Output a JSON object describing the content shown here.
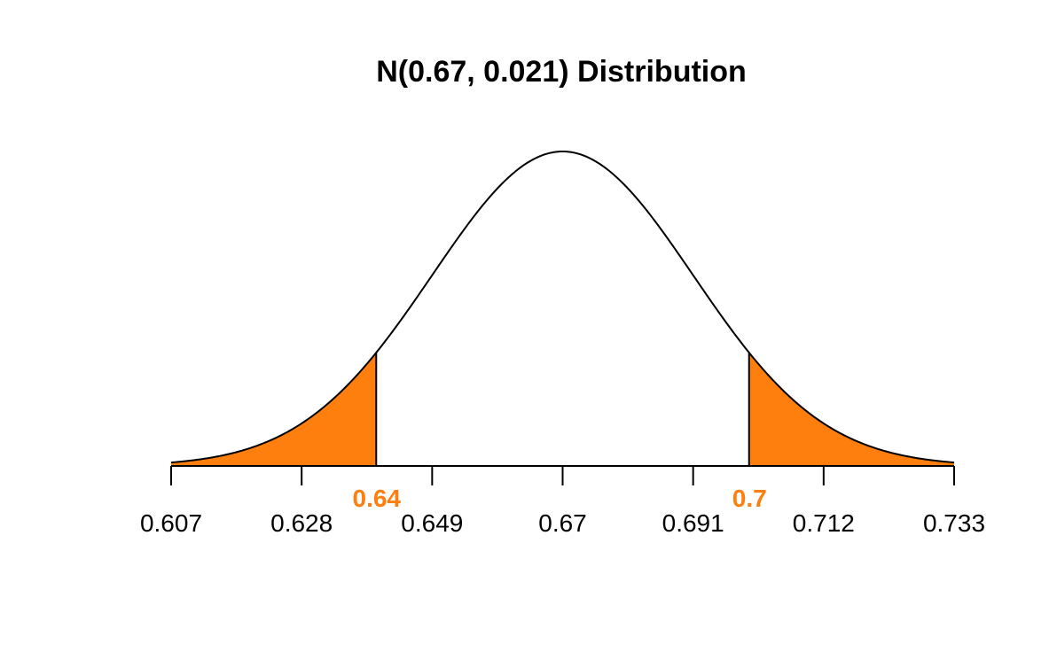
{
  "chart_data": {
    "type": "area",
    "title": "N(0.67, 0.021) Distribution",
    "xlabel": "",
    "ylabel": "",
    "distribution": {
      "family": "normal",
      "mean": 0.67,
      "sd": 0.021
    },
    "xlim": [
      0.607,
      0.733
    ],
    "x_ticks": [
      0.607,
      0.628,
      0.649,
      0.67,
      0.691,
      0.712,
      0.733
    ],
    "x_tick_labels": [
      "0.607",
      "0.628",
      "0.649",
      "0.67",
      "0.691",
      "0.712",
      "0.733"
    ],
    "shaded_regions": [
      {
        "from": 0.607,
        "to": 0.64
      },
      {
        "from": 0.7,
        "to": 0.733
      }
    ],
    "cutoffs": [
      {
        "value": 0.64,
        "label": "0.64"
      },
      {
        "value": 0.7,
        "label": "0.7"
      }
    ],
    "grid": false,
    "colors": {
      "shade": "#FF7F0E",
      "curve": "#000000",
      "cutoff_label": "#FF7F0E"
    }
  }
}
